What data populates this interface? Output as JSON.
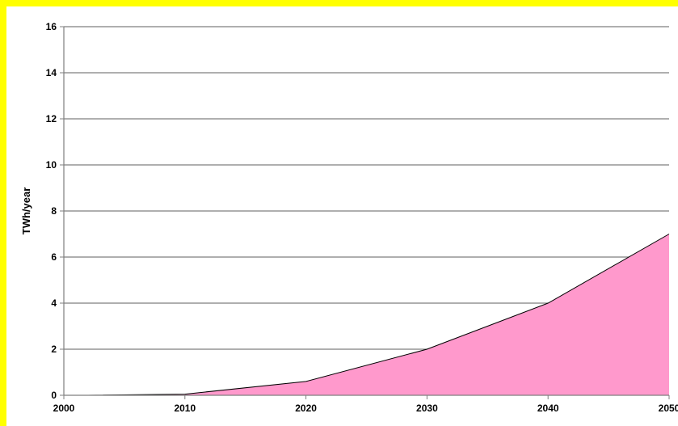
{
  "chart_data": {
    "type": "area",
    "ylabel": "TWh/year",
    "xlabel": "",
    "x_ticks": [
      2000,
      2010,
      2020,
      2030,
      2040,
      2050
    ],
    "y_ticks": [
      0,
      2,
      4,
      6,
      8,
      10,
      12,
      14,
      16
    ],
    "xlim": [
      2000,
      2050
    ],
    "ylim": [
      0,
      16
    ],
    "grid": "horizontal",
    "legend": "none",
    "series": [
      {
        "color": "#ff99cc",
        "x": [
          2002,
          2010,
          2020,
          2030,
          2040,
          2050
        ],
        "values": [
          0,
          0.05,
          0.6,
          2.0,
          4.0,
          7.0
        ]
      }
    ],
    "colors": {
      "frame": "#ffff00",
      "plot_background": "#ffffff",
      "gridline": "#7f7f7f",
      "area_fill": "#ff99cc",
      "area_outline": "#000000"
    }
  }
}
